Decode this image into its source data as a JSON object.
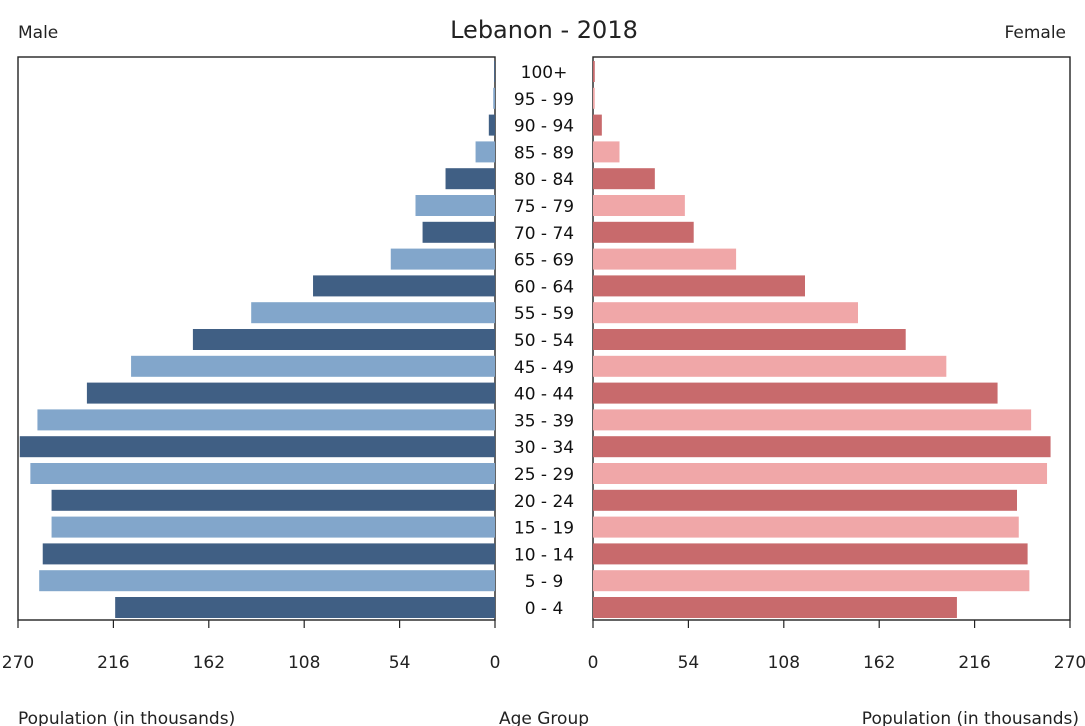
{
  "chart_data": {
    "type": "bar",
    "title": "Lebanon - 2018",
    "left_label": "Male",
    "right_label": "Female",
    "xlabel_left": "Population (in thousands)",
    "xlabel_right": "Population (in thousands)",
    "center_label": "Age Group",
    "xlim": [
      0,
      270
    ],
    "ticks": [
      270,
      216,
      162,
      108,
      54,
      0
    ],
    "ticks_right": [
      0,
      54,
      108,
      162,
      216,
      270
    ],
    "categories": [
      "100+",
      "95 - 99",
      "90 - 94",
      "85 - 89",
      "80 - 84",
      "75 - 79",
      "70 - 74",
      "65 - 69",
      "60 - 64",
      "55 - 59",
      "50 - 54",
      "45 - 49",
      "40 - 44",
      "35 - 39",
      "30 - 34",
      "25 - 29",
      "20 - 24",
      "15 - 19",
      "10 - 14",
      "5 - 9",
      "0 - 4"
    ],
    "series": [
      {
        "name": "Male",
        "values": [
          0.5,
          1,
          3.5,
          11,
          28,
          45,
          41,
          59,
          103,
          138,
          171,
          206,
          231,
          259,
          269,
          263,
          251,
          251,
          256,
          258,
          215
        ]
      },
      {
        "name": "Female",
        "values": [
          1,
          1,
          5,
          15,
          35,
          52,
          57,
          81,
          120,
          150,
          177,
          200,
          229,
          248,
          259,
          257,
          240,
          241,
          246,
          247,
          206
        ]
      }
    ],
    "colors": {
      "male_dark": "#405f84",
      "male_light": "#82a6cb",
      "female_dark": "#c86a6c",
      "female_light": "#f0a7a8"
    }
  }
}
